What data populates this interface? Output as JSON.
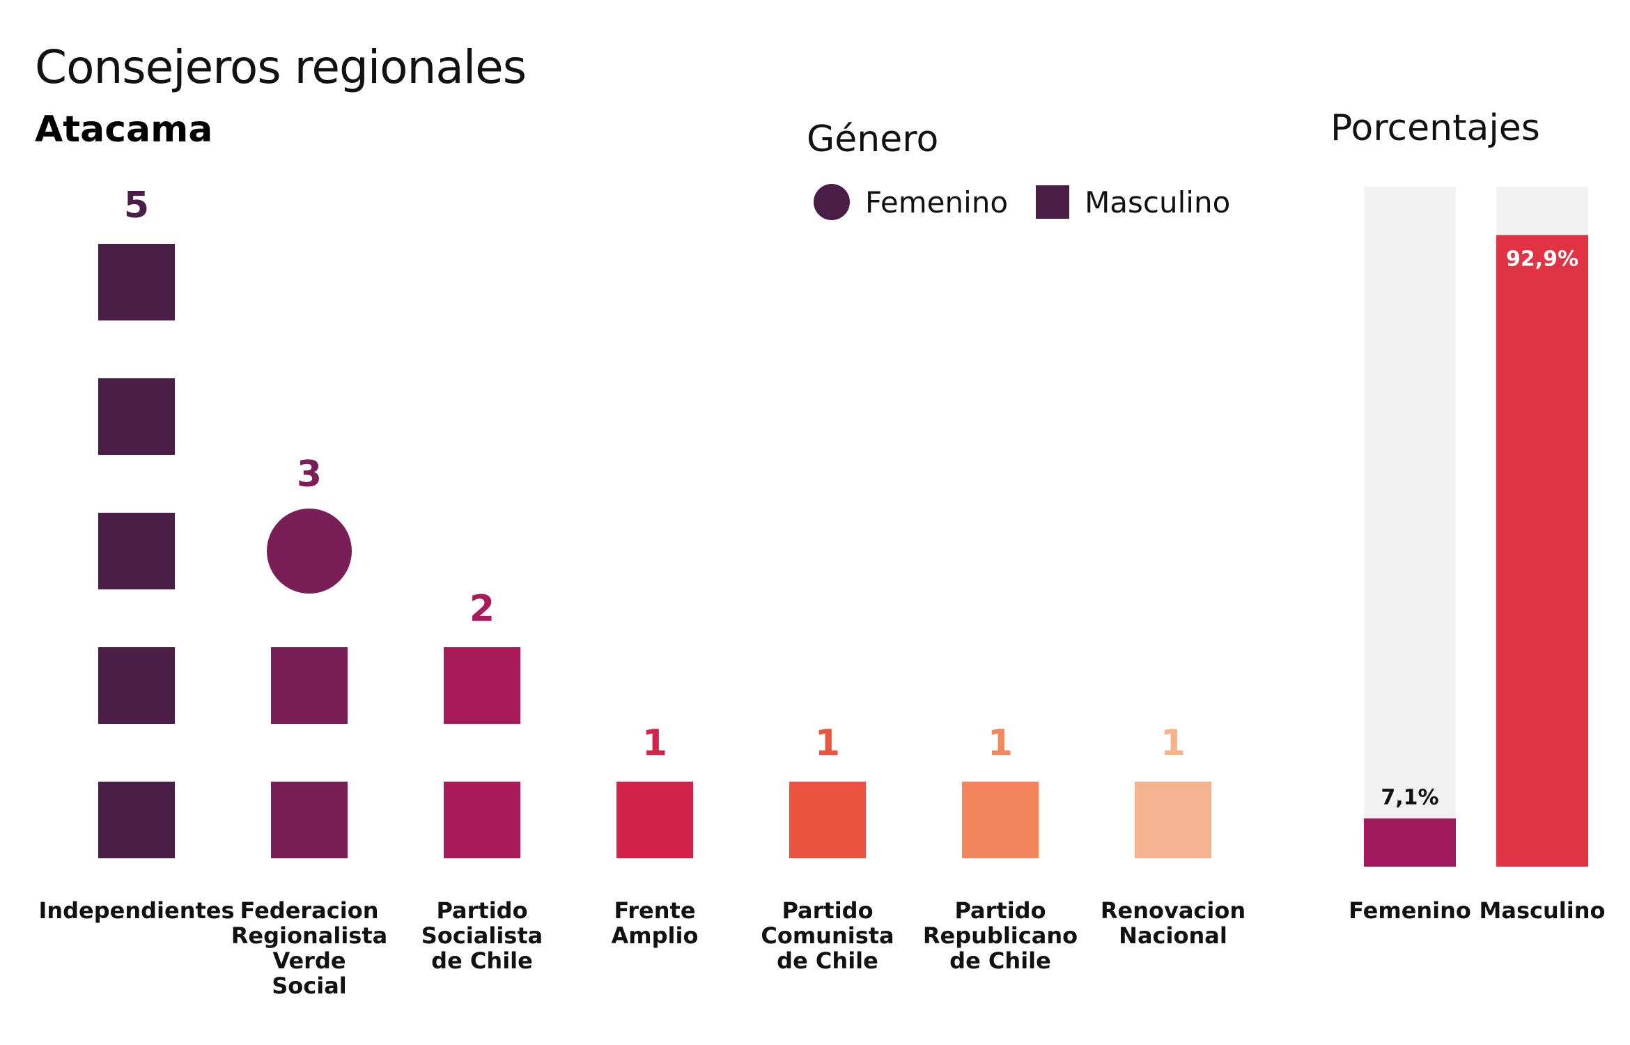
{
  "title": "Consejeros regionales",
  "subtitle": "Atacama",
  "legend": {
    "title": "Género",
    "items": [
      {
        "label": "Femenino",
        "shape": "circle",
        "color": "#4a1d47"
      },
      {
        "label": "Masculino",
        "shape": "square",
        "color": "#4a1d47"
      }
    ]
  },
  "percent_panel": {
    "title": "Porcentajes"
  },
  "chart_data": [
    {
      "type": "unit-stack",
      "categories": [
        {
          "name": "Independientes",
          "label_lines": [
            "Independientes"
          ],
          "count": 5,
          "femenino": 0,
          "masculino": 5,
          "color": "#4b1e48"
        },
        {
          "name": "Federacion Regionalista Verde Social",
          "label_lines": [
            "Federacion",
            "Regionalista",
            "Verde",
            "Social"
          ],
          "count": 3,
          "femenino": 1,
          "masculino": 2,
          "color": "#7a1e57"
        },
        {
          "name": "Partido Socialista de Chile",
          "label_lines": [
            "Partido",
            "Socialista",
            "de Chile"
          ],
          "count": 2,
          "femenino": 0,
          "masculino": 2,
          "color": "#a81a58"
        },
        {
          "name": "Frente Amplio",
          "label_lines": [
            "Frente",
            "Amplio"
          ],
          "count": 1,
          "femenino": 0,
          "masculino": 1,
          "color": "#d4234a"
        },
        {
          "name": "Partido Comunista de Chile",
          "label_lines": [
            "Partido",
            "Comunista",
            "de Chile"
          ],
          "count": 1,
          "femenino": 0,
          "masculino": 1,
          "color": "#ea533f"
        },
        {
          "name": "Partido Republicano de Chile",
          "label_lines": [
            "Partido",
            "Republicano",
            "de Chile"
          ],
          "count": 1,
          "femenino": 0,
          "masculino": 1,
          "color": "#f3865d"
        },
        {
          "name": "Renovacion Nacional",
          "label_lines": [
            "Renovacion",
            "Nacional"
          ],
          "count": 1,
          "femenino": 0,
          "masculino": 1,
          "color": "#f5b28e"
        }
      ]
    },
    {
      "type": "bar",
      "title": "Porcentajes",
      "categories": [
        "Femenino",
        "Masculino"
      ],
      "values": [
        7.1,
        92.9
      ],
      "value_labels": [
        "7,1%",
        "92,9%"
      ],
      "colors": [
        "#a0195c",
        "#e03444"
      ],
      "background_color": "#f1f1f1",
      "ylim": [
        0,
        100
      ]
    }
  ]
}
